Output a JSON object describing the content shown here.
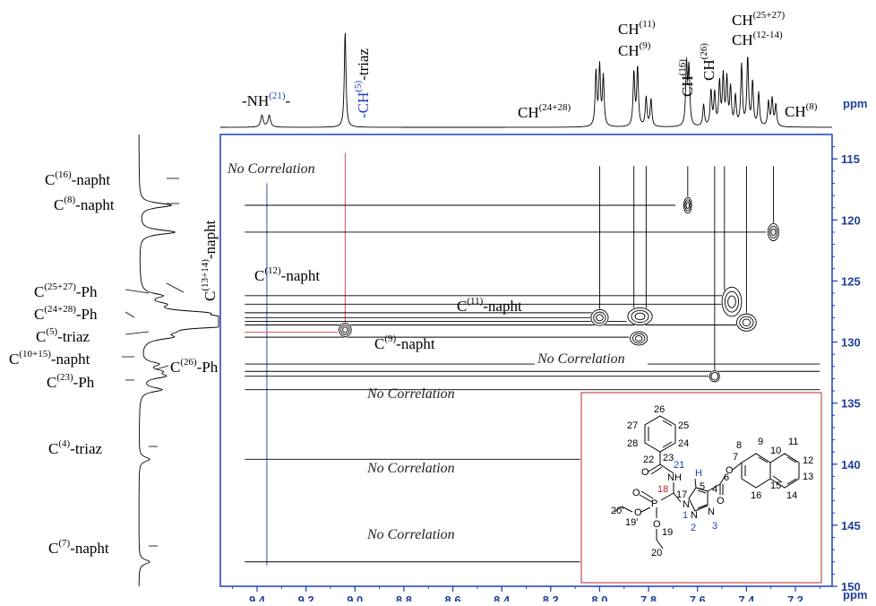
{
  "colors": {
    "axis": "#1f3f9a",
    "frame": "#1f3fbf",
    "red_line": "#d4383e",
    "inset_border": "#c0504d",
    "black": "#000000"
  },
  "chart_data": {
    "type": "heatmap",
    "title": "",
    "x_axis": {
      "unit": "ppm",
      "range": [
        9.55,
        7.05
      ],
      "ticks": [
        "9.4",
        "9.2",
        "9.0",
        "8.8",
        "8.6",
        "8.4",
        "8.2",
        "8.0",
        "7.8",
        "7.6",
        "7.4",
        "7.2"
      ]
    },
    "y_axis": {
      "unit": "ppm",
      "range": [
        113,
        150
      ],
      "ticks": [
        "115",
        "120",
        "125",
        "130",
        "135",
        "140",
        "145",
        "150"
      ]
    },
    "proton_labels": [
      {
        "pre": "-NH",
        "sup": "(21)",
        "post": "-"
      },
      {
        "pre": "-CH",
        "sup": "(5)",
        "post": "-triaz"
      },
      {
        "pre": "CH",
        "sup": "(24+28)",
        "post": ""
      },
      {
        "pre": "CH",
        "sup": "(11)",
        "post": ""
      },
      {
        "pre": "CH",
        "sup": "(9)",
        "post": ""
      },
      {
        "pre": "CH",
        "sup": "(16)",
        "post": ""
      },
      {
        "pre": "CH",
        "sup": "(26)",
        "post": ""
      },
      {
        "pre": "CH",
        "sup": "(25+27)",
        "post": ""
      },
      {
        "pre": "CH",
        "sup": "(12-14)",
        "post": ""
      },
      {
        "pre": "CH",
        "sup": "(8)",
        "post": ""
      }
    ],
    "carbon_labels": [
      {
        "pre": "C",
        "sup": "(16)",
        "post": "-napht"
      },
      {
        "pre": "C",
        "sup": "(8)",
        "post": "-napht"
      },
      {
        "pre": "C",
        "sup": "(13+14)",
        "post": "-napht"
      },
      {
        "pre": "C",
        "sup": "(25+27)",
        "post": "-Ph"
      },
      {
        "pre": "C",
        "sup": "(24+28)",
        "post": "-Ph"
      },
      {
        "pre": "C",
        "sup": "(5)",
        "post": "-triaz"
      },
      {
        "pre": "C",
        "sup": "(10+15)",
        "post": "-napht"
      },
      {
        "pre": "C",
        "sup": "(26)",
        "post": "-Ph"
      },
      {
        "pre": "C",
        "sup": "(23)",
        "post": "-Ph"
      },
      {
        "pre": "C",
        "sup": "(4)",
        "post": "-triaz"
      },
      {
        "pre": "C",
        "sup": "(7)",
        "post": "-napht"
      },
      {
        "pre": "C",
        "sup": "(12)",
        "post": "-napht"
      },
      {
        "pre": "C",
        "sup": "(11)",
        "post": "-napht"
      },
      {
        "pre": "C",
        "sup": "(9)",
        "post": "-napht"
      }
    ],
    "annotations": [
      "No Correlation"
    ],
    "proton_peaks": [
      {
        "x": 9.38,
        "h": 0.12,
        "w": 0.006
      },
      {
        "x": 9.35,
        "h": 0.12,
        "w": 0.006
      },
      {
        "x": 9.04,
        "h": 0.98,
        "w": 0.004
      },
      {
        "x": 8.015,
        "h": 0.55,
        "w": 0.004
      },
      {
        "x": 8.0,
        "h": 0.6,
        "w": 0.004
      },
      {
        "x": 7.985,
        "h": 0.5,
        "w": 0.004
      },
      {
        "x": 7.86,
        "h": 0.55,
        "w": 0.004
      },
      {
        "x": 7.845,
        "h": 0.6,
        "w": 0.004
      },
      {
        "x": 7.81,
        "h": 0.3,
        "w": 0.004
      },
      {
        "x": 7.79,
        "h": 0.28,
        "w": 0.004
      },
      {
        "x": 7.645,
        "h": 0.62,
        "w": 0.004
      },
      {
        "x": 7.635,
        "h": 0.58,
        "w": 0.004
      },
      {
        "x": 7.575,
        "h": 0.22,
        "w": 0.004
      },
      {
        "x": 7.545,
        "h": 0.36,
        "w": 0.004
      },
      {
        "x": 7.53,
        "h": 0.33,
        "w": 0.004
      },
      {
        "x": 7.51,
        "h": 0.44,
        "w": 0.004
      },
      {
        "x": 7.495,
        "h": 0.5,
        "w": 0.004
      },
      {
        "x": 7.48,
        "h": 0.47,
        "w": 0.004
      },
      {
        "x": 7.465,
        "h": 0.38,
        "w": 0.004
      },
      {
        "x": 7.445,
        "h": 0.3,
        "w": 0.004
      },
      {
        "x": 7.42,
        "h": 0.62,
        "w": 0.004
      },
      {
        "x": 7.395,
        "h": 0.7,
        "w": 0.004
      },
      {
        "x": 7.375,
        "h": 0.45,
        "w": 0.004
      },
      {
        "x": 7.35,
        "h": 0.34,
        "w": 0.004
      },
      {
        "x": 7.31,
        "h": 0.25,
        "w": 0.004
      },
      {
        "x": 7.295,
        "h": 0.28,
        "w": 0.004
      },
      {
        "x": 7.28,
        "h": 0.22,
        "w": 0.004
      }
    ],
    "carbon_peaks": [
      {
        "y": 118.8,
        "h": 0.3
      },
      {
        "y": 121.0,
        "h": 0.33
      },
      {
        "y": 126.2,
        "h": 0.18
      },
      {
        "y": 126.9,
        "h": 0.16
      },
      {
        "y": 127.6,
        "h": 0.42
      },
      {
        "y": 128.0,
        "h": 0.5
      },
      {
        "y": 128.3,
        "h": 0.6
      },
      {
        "y": 128.6,
        "h": 0.95
      },
      {
        "y": 129.2,
        "h": 0.12
      },
      {
        "y": 129.6,
        "h": 0.22
      },
      {
        "y": 131.8,
        "h": 0.15
      },
      {
        "y": 132.4,
        "h": 0.15
      },
      {
        "y": 132.8,
        "h": 0.2
      },
      {
        "y": 133.9,
        "h": 0.2
      },
      {
        "y": 139.6,
        "h": 0.1
      },
      {
        "y": 148.0,
        "h": 0.1
      }
    ],
    "cross_peaks": [
      {
        "x": 7.64,
        "y": 118.8,
        "rx": 0.016,
        "ry": 0.65,
        "n": 3
      },
      {
        "x": 7.29,
        "y": 121.0,
        "rx": 0.022,
        "ry": 0.7,
        "n": 3
      },
      {
        "x": 7.46,
        "y": 126.7,
        "rx": 0.04,
        "ry": 1.2,
        "n": 3
      },
      {
        "x": 8.0,
        "y": 128.0,
        "rx": 0.035,
        "ry": 0.65,
        "n": 3
      },
      {
        "x": 7.835,
        "y": 127.9,
        "rx": 0.05,
        "ry": 0.7,
        "n": 3
      },
      {
        "x": 7.4,
        "y": 128.4,
        "rx": 0.04,
        "ry": 0.7,
        "n": 3
      },
      {
        "x": 9.04,
        "y": 129.0,
        "rx": 0.025,
        "ry": 0.55,
        "n": 3
      },
      {
        "x": 7.84,
        "y": 129.7,
        "rx": 0.035,
        "ry": 0.55,
        "n": 3
      },
      {
        "x": 7.53,
        "y": 132.8,
        "rx": 0.02,
        "ry": 0.45,
        "n": 2
      }
    ],
    "vertical_lines": [
      {
        "x": 9.36,
        "y1": 117,
        "y2": 148.3,
        "color": "#1f3f9a"
      },
      {
        "x": 9.04,
        "y1": 114.5,
        "y2": 128.6,
        "color": "#d4383e"
      },
      {
        "x": 8.0,
        "y1": 115.6,
        "y2": 127.6
      },
      {
        "x": 7.86,
        "y1": 115.6,
        "y2": 127.5
      },
      {
        "x": 7.81,
        "y1": 115.6,
        "y2": 127.5
      },
      {
        "x": 7.64,
        "y1": 115.6,
        "y2": 118.2
      },
      {
        "x": 7.53,
        "y1": 115.6,
        "y2": 132.3
      },
      {
        "x": 7.49,
        "y1": 115.6,
        "y2": 126.0
      },
      {
        "x": 7.4,
        "y1": 115.6,
        "y2": 127.8
      },
      {
        "x": 7.29,
        "y1": 115.6,
        "y2": 120.5
      }
    ],
    "horizontal_lines": [
      {
        "y": 118.8,
        "x1": 9.45,
        "x2": 7.69
      },
      {
        "y": 121.0,
        "x1": 9.45,
        "x2": 7.32
      },
      {
        "y": 126.2,
        "x1": 9.45,
        "x2": 7.5
      },
      {
        "y": 126.9,
        "x1": 9.45,
        "x2": 7.5
      },
      {
        "y": 127.6,
        "x1": 9.45,
        "x2": 8.03
      },
      {
        "y": 128.0,
        "x1": 9.45,
        "x2": 8.03
      },
      {
        "y": 128.3,
        "x1": 9.45,
        "x2": 7.89
      },
      {
        "y": 128.6,
        "x1": 9.45,
        "x2": 7.44
      },
      {
        "y": 129.2,
        "x1": 9.45,
        "x2": 9.07,
        "color": "#d4383e"
      },
      {
        "y": 129.6,
        "x1": 9.45,
        "x2": 7.88
      },
      {
        "y": 131.8,
        "x1": 9.45,
        "x2": 7.1
      },
      {
        "y": 132.4,
        "x1": 9.45,
        "x2": 7.1
      },
      {
        "y": 132.8,
        "x1": 9.45,
        "x2": 7.55
      },
      {
        "y": 133.9,
        "x1": 9.45,
        "x2": 7.1
      },
      {
        "y": 139.6,
        "x1": 9.45,
        "x2": 8.08
      },
      {
        "y": 148.0,
        "x1": 9.45,
        "x2": 8.08
      }
    ]
  },
  "molecule": {
    "atom_numbers": [
      "26",
      "27",
      "25",
      "28",
      "24",
      "23",
      "22",
      "21",
      "NH",
      "H",
      "5",
      "4",
      "6",
      "O",
      "O",
      "7",
      "8",
      "9",
      "10",
      "11",
      "12",
      "13",
      "14",
      "15",
      "16",
      "17",
      "18",
      "P",
      "O",
      "O",
      "O",
      "N",
      "N",
      "N",
      "1",
      "2",
      "3",
      "19'",
      "20'",
      "19",
      "20"
    ]
  }
}
